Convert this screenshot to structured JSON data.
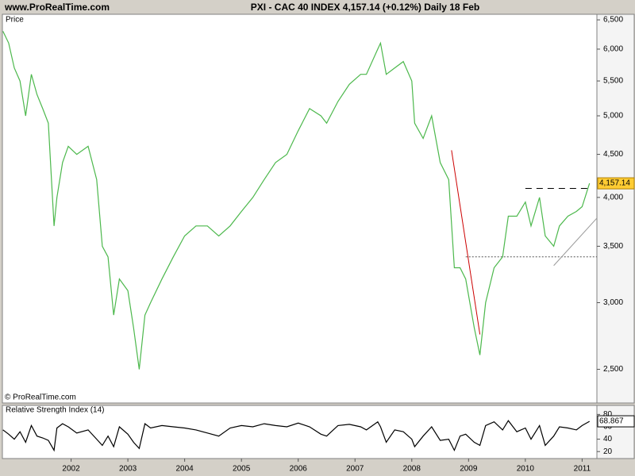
{
  "header": {
    "site": "www.ProRealTime.com",
    "title": "PXI - CAC 40 INDEX    4,157.14 (+0.12%)    Daily  18 Feb"
  },
  "copyright": "© ProRealTime.com",
  "chart_data": [
    {
      "type": "line",
      "title": "Price",
      "log_scale": true,
      "xlim": [
        2000.79,
        2011.26
      ],
      "ylim": [
        2280,
        6600
      ],
      "yticks": [
        {
          "value": 2500,
          "label": "2,500"
        },
        {
          "value": 3000,
          "label": "3,000"
        },
        {
          "value": 3500,
          "label": "3,500"
        },
        {
          "value": 4000,
          "label": "4,000"
        },
        {
          "value": 4500,
          "label": "4,500"
        },
        {
          "value": 5000,
          "label": "5,000"
        },
        {
          "value": 5500,
          "label": "5,500"
        },
        {
          "value": 6000,
          "label": "6,000"
        },
        {
          "value": 6500,
          "label": "6,500"
        }
      ],
      "x": [
        2000.8,
        2000.9,
        2001.0,
        2001.1,
        2001.2,
        2001.3,
        2001.4,
        2001.5,
        2001.6,
        2001.7,
        2001.75,
        2001.85,
        2001.95,
        2002.1,
        2002.3,
        2002.45,
        2002.55,
        2002.65,
        2002.75,
        2002.85,
        2003.0,
        2003.1,
        2003.2,
        2003.3,
        2003.4,
        2003.6,
        2003.8,
        2004.0,
        2004.2,
        2004.4,
        2004.6,
        2004.8,
        2005.0,
        2005.2,
        2005.4,
        2005.6,
        2005.8,
        2006.0,
        2006.2,
        2006.4,
        2006.5,
        2006.7,
        2006.9,
        2007.1,
        2007.2,
        2007.4,
        2007.45,
        2007.55,
        2007.7,
        2007.85,
        2008.0,
        2008.05,
        2008.2,
        2008.35,
        2008.5,
        2008.65,
        2008.75,
        2008.85,
        2008.95,
        2009.1,
        2009.2,
        2009.3,
        2009.45,
        2009.6,
        2009.7,
        2009.85,
        2010.0,
        2010.1,
        2010.25,
        2010.35,
        2010.5,
        2010.6,
        2010.75,
        2010.9,
        2011.0,
        2011.13
      ],
      "series": [
        {
          "name": "PXI - CAC 40 INDEX",
          "color": "#4cb84c",
          "values": [
            6300,
            6100,
            5700,
            5500,
            5000,
            5600,
            5300,
            5100,
            4900,
            3700,
            4000,
            4400,
            4600,
            4500,
            4600,
            4200,
            3500,
            3400,
            2900,
            3200,
            3100,
            2800,
            2500,
            2900,
            3000,
            3200,
            3400,
            3600,
            3700,
            3700,
            3600,
            3700,
            3850,
            4000,
            4200,
            4400,
            4500,
            4800,
            5100,
            5000,
            4900,
            5200,
            5450,
            5600,
            5600,
            6000,
            6100,
            5600,
            5700,
            5800,
            5500,
            4900,
            4700,
            5000,
            4400,
            4200,
            3300,
            3300,
            3200,
            2800,
            2600,
            3000,
            3300,
            3400,
            3800,
            3800,
            3950,
            3700,
            4000,
            3600,
            3500,
            3700,
            3800,
            3850,
            3900,
            4157.14
          ]
        }
      ],
      "last_price": {
        "value": 4157.14,
        "label": "4,157.14"
      },
      "lines": [
        {
          "x": [
            2008.7,
            2009.2
          ],
          "values": [
            4550,
            2750
          ],
          "color": "#cc0000"
        },
        {
          "x": [
            2010.0,
            2011.13
          ],
          "values": [
            4100,
            4100
          ],
          "color": "#000000",
          "dash": "8 6"
        },
        {
          "x": [
            2008.95,
            2011.26
          ],
          "values": [
            3400,
            3400
          ],
          "color": "#555555",
          "dash": "2 2"
        },
        {
          "x": [
            2010.5,
            2011.26
          ],
          "values": [
            3320,
            3780
          ],
          "color": "#999999"
        }
      ]
    },
    {
      "type": "line",
      "title": "Relative Strength Index (14)",
      "xlim": [
        2000.79,
        2011.26
      ],
      "ylim": [
        10,
        92
      ],
      "xticks": [
        2002,
        2003,
        2004,
        2005,
        2006,
        2007,
        2008,
        2009,
        2010,
        2011
      ],
      "yticks": [
        20,
        40,
        60,
        80
      ],
      "x": [
        2000.8,
        2000.9,
        2001.0,
        2001.1,
        2001.2,
        2001.3,
        2001.4,
        2001.5,
        2001.6,
        2001.7,
        2001.75,
        2001.85,
        2001.95,
        2002.1,
        2002.3,
        2002.45,
        2002.55,
        2002.65,
        2002.75,
        2002.85,
        2003.0,
        2003.1,
        2003.2,
        2003.3,
        2003.4,
        2003.6,
        2003.8,
        2004.0,
        2004.2,
        2004.4,
        2004.6,
        2004.8,
        2005.0,
        2005.2,
        2005.4,
        2005.6,
        2005.8,
        2006.0,
        2006.2,
        2006.4,
        2006.5,
        2006.7,
        2006.9,
        2007.1,
        2007.2,
        2007.4,
        2007.45,
        2007.55,
        2007.7,
        2007.85,
        2008.0,
        2008.05,
        2008.2,
        2008.35,
        2008.5,
        2008.65,
        2008.75,
        2008.85,
        2008.95,
        2009.1,
        2009.2,
        2009.3,
        2009.45,
        2009.6,
        2009.7,
        2009.85,
        2010.0,
        2010.1,
        2010.25,
        2010.35,
        2010.5,
        2010.6,
        2010.75,
        2010.9,
        2011.0,
        2011.13
      ],
      "series": [
        {
          "name": "RSI",
          "color": "#000000",
          "values": [
            55,
            48,
            40,
            52,
            35,
            62,
            45,
            42,
            38,
            22,
            58,
            65,
            60,
            50,
            55,
            40,
            30,
            45,
            28,
            60,
            48,
            35,
            25,
            65,
            58,
            62,
            60,
            58,
            55,
            50,
            45,
            58,
            62,
            60,
            65,
            62,
            60,
            66,
            60,
            48,
            45,
            62,
            64,
            60,
            55,
            68,
            60,
            35,
            55,
            52,
            40,
            28,
            45,
            60,
            38,
            40,
            22,
            45,
            48,
            35,
            30,
            62,
            68,
            55,
            70,
            52,
            58,
            40,
            62,
            30,
            45,
            60,
            58,
            55,
            62,
            68.867
          ]
        }
      ]
    }
  ]
}
